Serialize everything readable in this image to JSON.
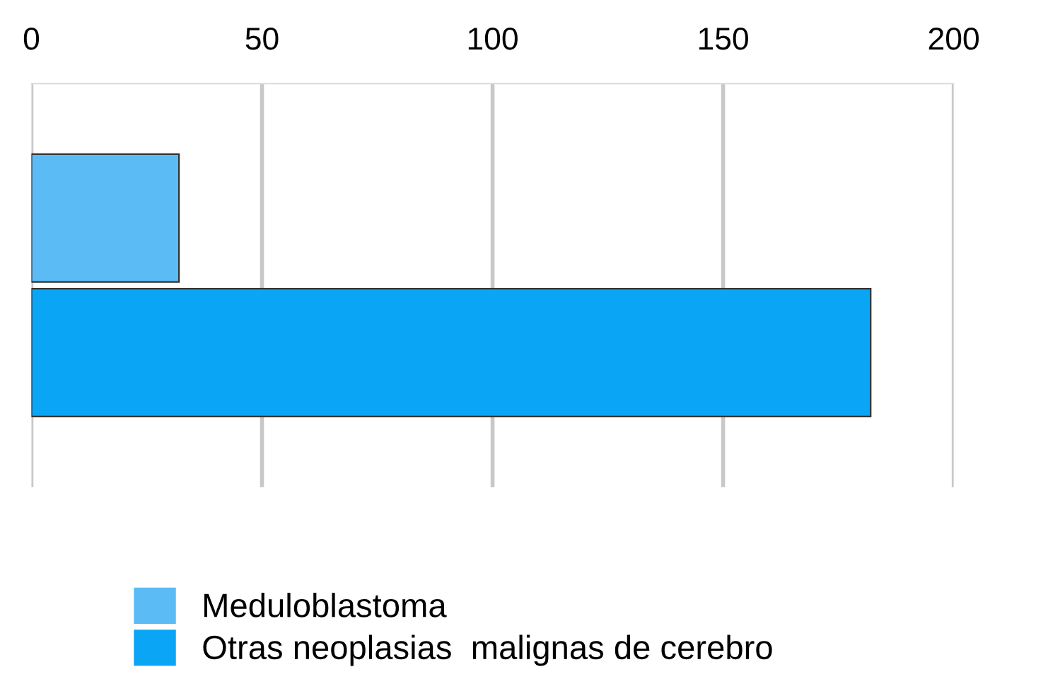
{
  "chart_data": {
    "type": "bar",
    "orientation": "horizontal",
    "categories": [
      null
    ],
    "series": [
      {
        "name": "Meduloblastoma",
        "color": "#5bbcf5",
        "values": [
          32
        ]
      },
      {
        "name": "Otras neoplasias  malignas de cerebro",
        "color": "#0aa5f5",
        "values": [
          182
        ]
      }
    ],
    "xlim": [
      0,
      200
    ],
    "xticks": [
      0,
      50,
      100,
      150,
      200
    ],
    "grid": "x",
    "legend": "bottom left",
    "tick_labels": "x"
  }
}
